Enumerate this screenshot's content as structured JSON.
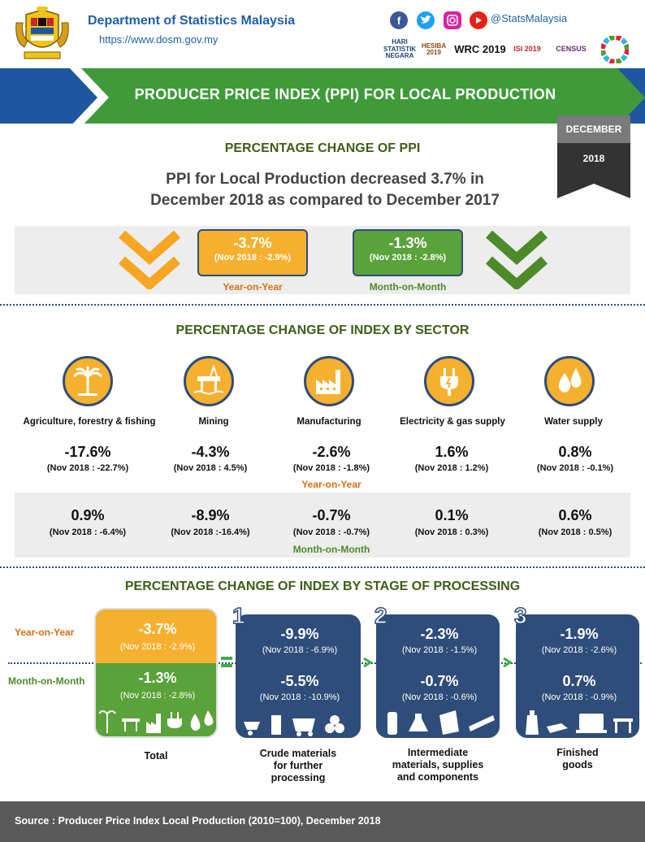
{
  "header": {
    "org_name": "Department of Statistics Malaysia",
    "url": "https://www.dosm.gov.my",
    "social_handle": "@StatsMalaysia",
    "social_icons": [
      "facebook-icon",
      "twitter-icon",
      "instagram-icon",
      "youtube-icon"
    ],
    "partner_logos": [
      {
        "name": "hari-statistik-negara-logo",
        "text": "HARI STATISTIK NEGARA"
      },
      {
        "name": "hesiba-logo",
        "text": "HESIBA 2019"
      },
      {
        "name": "wrc-logo",
        "text": "WRC 2019"
      },
      {
        "name": "isi-logo",
        "text": "ISI 2019"
      },
      {
        "name": "census-logo",
        "text": "CENSUS"
      },
      {
        "name": "sdg-logo",
        "text": ""
      }
    ]
  },
  "banner": {
    "title": "PRODUCER PRICE INDEX (PPI) FOR LOCAL PRODUCTION",
    "month": "DECEMBER",
    "year": "2018"
  },
  "ppi": {
    "section_title": "PERCENTAGE CHANGE OF PPI",
    "summary_line1": "PPI for Local Production decreased 3.7% in",
    "summary_line2": "December 2018 as compared to December 2017",
    "yoy": {
      "value": "-3.7%",
      "sub": "(Nov 2018 : -2.9%)",
      "label": "Year-on-Year"
    },
    "mom": {
      "value": "-1.3%",
      "sub": "(Nov 2018 : -2.8%)",
      "label": "Month-on-Month"
    }
  },
  "sector": {
    "section_title": "PERCENTAGE CHANGE OF INDEX BY SECTOR",
    "yoy_label": "Year-on-Year",
    "mom_label": "Month-on-Month",
    "items": [
      {
        "name": "Agriculture, forestry & fishing",
        "icon": "palm-tree-icon",
        "yoy": "-17.6%",
        "yoy_sub": "(Nov 2018 : -22.7%)",
        "mom": "0.9%",
        "mom_sub": "(Nov 2018 : -6.4%)"
      },
      {
        "name": "Mining",
        "icon": "oil-rig-icon",
        "yoy": "-4.3%",
        "yoy_sub": "(Nov 2018 : 4.5%)",
        "mom": "-8.9%",
        "mom_sub": "(Nov 2018 :-16.4%)"
      },
      {
        "name": "Manufacturing",
        "icon": "factory-icon",
        "yoy": "-2.6%",
        "yoy_sub": "(Nov 2018 : -1.8%)",
        "mom": "-0.7%",
        "mom_sub": "(Nov 2018 : -0.7%)"
      },
      {
        "name": "Electricity & gas supply",
        "icon": "plug-icon",
        "yoy": "1.6%",
        "yoy_sub": "(Nov 2018 : 1.2%)",
        "mom": "0.1%",
        "mom_sub": "(Nov 2018 : 0.3%)"
      },
      {
        "name": "Water supply",
        "icon": "water-drops-icon",
        "yoy": "0.8%",
        "yoy_sub": "(Nov 2018 : -0.1%)",
        "mom": "0.6%",
        "mom_sub": "(Nov 2018 : 0.5%)"
      }
    ]
  },
  "stage": {
    "section_title": "PERCENTAGE CHANGE OF INDEX BY STAGE OF PROCESSING",
    "yoy_label": "Year-on-Year",
    "mom_label": "Month-on-Month",
    "total": {
      "label": "Total",
      "yoy": "-3.7%",
      "yoy_sub": "(Nov 2018 : -2.9%)",
      "mom": "-1.3%",
      "mom_sub": "(Nov 2018 : -2.8%)"
    },
    "stages": [
      {
        "num": "1",
        "label1": "Crude materials",
        "label2": "for further",
        "label3": "processing",
        "yoy": "-9.9%",
        "yoy_sub": "(Nov 2018 : -6.9%)",
        "mom": "-5.5%",
        "mom_sub": "(Nov 2018 : -10.9%)"
      },
      {
        "num": "2",
        "label1": "Intermediate",
        "label2": "materials, supplies",
        "label3": "and components",
        "yoy": "-2.3%",
        "yoy_sub": "(Nov 2018 : -1.5%)",
        "mom": "-0.7%",
        "mom_sub": "(Nov 2018 : -0.6%)"
      },
      {
        "num": "3",
        "label1": "Finished",
        "label2": "goods",
        "label3": "",
        "yoy": "-1.9%",
        "yoy_sub": "(Nov 2018 : -2.6%)",
        "mom": "0.7%",
        "mom_sub": "(Nov 2018 : -0.9%)"
      }
    ]
  },
  "footer": {
    "source": "Source : Producer Price Index Local Production (2010=100),  December 2018"
  },
  "colors": {
    "yoy_orange": "#f6b02f",
    "mom_green": "#5aa23a",
    "navy": "#2f4d7a",
    "banner_green": "#3f9b3a",
    "title_green": "#3e5e16"
  }
}
